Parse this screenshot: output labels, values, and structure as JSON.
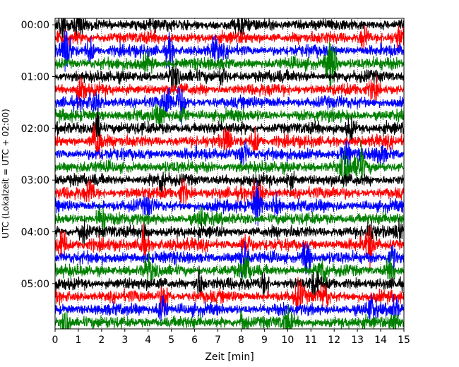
{
  "chart_data": {
    "type": "line",
    "title": "",
    "xlabel": "Zeit  [min]",
    "ylabel": "UTC (Lokalzeit = UTC + 02:00)",
    "xlim": [
      0,
      15
    ],
    "x_ticks": [
      0,
      1,
      2,
      3,
      4,
      5,
      6,
      7,
      8,
      9,
      10,
      11,
      12,
      13,
      14,
      15
    ],
    "y_tick_labels": [
      "00:00",
      "01:00",
      "02:00",
      "03:00",
      "04:00",
      "05:00"
    ],
    "trace_interval_min": 15,
    "trace_count": 24,
    "color_cycle": [
      "#000000",
      "#ff0000",
      "#0000ff",
      "#008000"
    ],
    "grid": "vertical dotted at each minute",
    "legend": "none",
    "traces": [
      {
        "label": "00:00",
        "events": [
          [
            0.3,
            3
          ],
          [
            1.0,
            2
          ],
          [
            8.0,
            1.5
          ]
        ]
      },
      {
        "label": "00:15",
        "events": [
          [
            13.3,
            2.2
          ],
          [
            14.8,
            2
          ]
        ]
      },
      {
        "label": "00:30",
        "events": [
          [
            0.5,
            4
          ],
          [
            1.5,
            2
          ],
          [
            4.9,
            2.5
          ],
          [
            6.9,
            2
          ]
        ]
      },
      {
        "label": "00:45",
        "events": [
          [
            4.0,
            1.5
          ],
          [
            11.8,
            3.5
          ],
          [
            12.0,
            2.5
          ]
        ]
      },
      {
        "label": "01:00",
        "events": [
          [
            5.1,
            2
          ],
          [
            7.2,
            1.5
          ]
        ]
      },
      {
        "label": "01:15",
        "events": [
          [
            1.1,
            2.5
          ],
          [
            13.7,
            1.5
          ]
        ]
      },
      {
        "label": "01:30",
        "events": [
          [
            4.8,
            2.8
          ],
          [
            5.4,
            2.8
          ],
          [
            1.7,
            1.5
          ]
        ]
      },
      {
        "label": "01:45",
        "events": [
          [
            4.5,
            1.5
          ],
          [
            5.5,
            1.5
          ]
        ]
      },
      {
        "label": "02:00",
        "events": [
          [
            1.8,
            3
          ],
          [
            12.7,
            2
          ]
        ]
      },
      {
        "label": "02:15",
        "events": [
          [
            1.8,
            4.2
          ],
          [
            7.4,
            2.2
          ],
          [
            8.6,
            2
          ]
        ]
      },
      {
        "label": "02:30",
        "events": [
          [
            8.1,
            2.2
          ],
          [
            12.5,
            2
          ],
          [
            14.0,
            1.5
          ]
        ]
      },
      {
        "label": "02:45",
        "events": [
          [
            12.5,
            3.5
          ],
          [
            13.1,
            3.5
          ]
        ]
      },
      {
        "label": "03:00",
        "events": [
          [
            4.6,
            2
          ],
          [
            10.1,
            1.5
          ]
        ]
      },
      {
        "label": "03:15",
        "events": [
          [
            1.5,
            2
          ],
          [
            5.5,
            2
          ],
          [
            8.7,
            2.2
          ]
        ]
      },
      {
        "label": "03:30",
        "events": [
          [
            8.7,
            3.8
          ],
          [
            9.5,
            2
          ],
          [
            4.0,
            1.5
          ]
        ]
      },
      {
        "label": "03:45",
        "events": [
          [
            2.0,
            3
          ],
          [
            6.3,
            1.5
          ]
        ]
      },
      {
        "label": "04:00",
        "events": [
          [
            1.2,
            2.2
          ],
          [
            3.8,
            2.2
          ],
          [
            13.6,
            2
          ],
          [
            14.8,
            2
          ]
        ]
      },
      {
        "label": "04:15",
        "events": [
          [
            0.3,
            3
          ],
          [
            3.8,
            3
          ],
          [
            8.2,
            2
          ],
          [
            13.5,
            3.5
          ]
        ]
      },
      {
        "label": "04:30",
        "events": [
          [
            8.1,
            3.5
          ],
          [
            10.8,
            3.2
          ],
          [
            14.5,
            2.5
          ]
        ]
      },
      {
        "label": "04:45",
        "events": [
          [
            4.0,
            2
          ],
          [
            8.2,
            2.2
          ],
          [
            11.5,
            2.5
          ],
          [
            14.4,
            2
          ]
        ]
      },
      {
        "label": "05:00",
        "events": [
          [
            6.2,
            2.5
          ],
          [
            9.0,
            2
          ],
          [
            11.2,
            2
          ]
        ]
      },
      {
        "label": "05:15",
        "events": [
          [
            4.7,
            2.8
          ],
          [
            10.5,
            2.2
          ],
          [
            11.6,
            2.2
          ]
        ]
      },
      {
        "label": "05:30",
        "events": [
          [
            4.6,
            3.2
          ],
          [
            13.6,
            2
          ],
          [
            14.6,
            2
          ]
        ]
      },
      {
        "label": "05:45",
        "events": [
          [
            0.5,
            2
          ],
          [
            8.1,
            2.2
          ],
          [
            10.0,
            2.2
          ],
          [
            14.6,
            2.8
          ]
        ]
      }
    ]
  }
}
